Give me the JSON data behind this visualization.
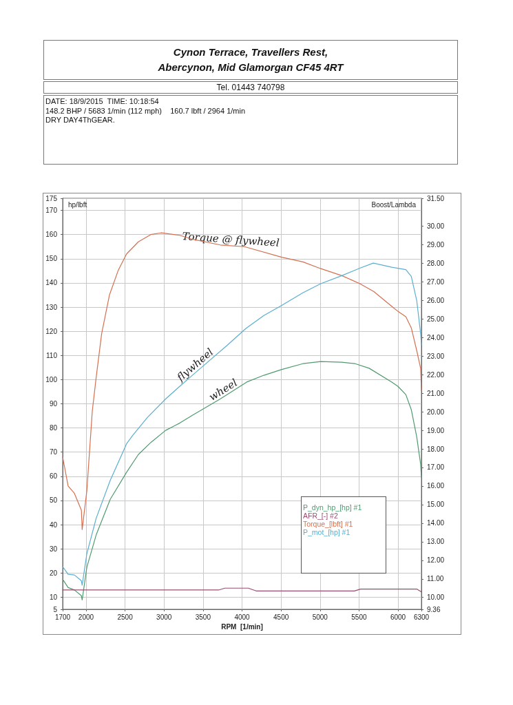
{
  "chart_data": {
    "type": "line",
    "title": "Cynon Terrace, Travellers Rest, Abercynon, Mid Glamorgan CF45 4RT",
    "subtitle": "Tel. 01443 740798",
    "xlabel": "RPM  [1/min]",
    "ylabel": "hp/lbft",
    "y2label": "Boost/Lambda",
    "annotations": [
      "DATE: 18/9/2015  TIME: 10:18:54",
      "148.2 BHP / 5683 1/min (112 mph)    160.7 lbft / 2964 1/min",
      "DRY DAY4ThGEAR.",
      {
        "text": "Torque @ flywheel",
        "x": 3850,
        "y": 155.4
      },
      {
        "text": "flywheel",
        "x": 3450,
        "y": 104.2
      },
      {
        "text": "wheel",
        "x": 3800,
        "y": 93.6
      }
    ],
    "series": [
      {
        "name": "P_dyn_hp_[hp] #1",
        "color": "#4f9a6e",
        "x": [
          1700,
          1770,
          1850,
          1940,
          1950,
          2010,
          2130,
          2310,
          2520,
          2670,
          2830,
          3020,
          3200,
          3370,
          3720,
          4060,
          4280,
          4510,
          4780,
          5010,
          5280,
          5450,
          5630,
          5920,
          6000,
          6100,
          6170,
          6240,
          6290,
          6300
        ],
        "values": [
          17.4,
          14,
          13,
          10.6,
          8.9,
          22.4,
          35.8,
          50.5,
          61.7,
          69,
          74,
          79,
          82,
          85.4,
          92,
          99,
          101.8,
          104.2,
          106.6,
          107.5,
          107.2,
          106.6,
          104.7,
          99,
          97.2,
          93.8,
          87.6,
          76.3,
          65,
          59.5
        ]
      },
      {
        "name": "AFR_[-] #2",
        "color": "#9a4a70",
        "axis": "y2",
        "x": [
          1700,
          3700,
          3780,
          4080,
          4180,
          5440,
          5520,
          6240,
          6300
        ],
        "values": [
          10.4,
          10.4,
          10.5,
          10.5,
          10.35,
          10.35,
          10.45,
          10.45,
          10.3
        ]
      },
      {
        "name": "Torque_[lbft] #1",
        "color": "#d4704f",
        "x": [
          1700,
          1770,
          1850,
          1940,
          1950,
          2010,
          2080,
          2130,
          2200,
          2300,
          2410,
          2520,
          2670,
          2830,
          2964,
          3200,
          3370,
          3720,
          4030,
          4510,
          4780,
          5010,
          5280,
          5510,
          5690,
          5920,
          6000,
          6100,
          6170,
          6240,
          6290,
          6300
        ],
        "values": [
          68,
          56,
          53,
          46,
          38,
          54,
          87,
          101,
          119,
          135,
          145,
          152,
          157,
          160,
          160.7,
          159.7,
          158,
          155.7,
          155,
          150.6,
          148.7,
          145.9,
          143,
          139.7,
          136.4,
          130.3,
          128.2,
          126,
          121.4,
          112,
          104.6,
          95.5
        ]
      },
      {
        "name": "P_mot_[hp] #1",
        "color": "#5aaed0",
        "x": [
          1700,
          1770,
          1850,
          1940,
          1950,
          2010,
          2130,
          2310,
          2520,
          2600,
          2790,
          3020,
          3200,
          3370,
          3810,
          4050,
          4280,
          4510,
          4780,
          5010,
          5280,
          5510,
          5683,
          5920,
          6100,
          6170,
          6240,
          6290,
          6300
        ],
        "values": [
          22.6,
          19.5,
          19.2,
          16.8,
          15,
          28,
          42.7,
          58.3,
          73.5,
          77,
          84.5,
          92,
          97.2,
          102,
          114.2,
          121.2,
          126.5,
          130.7,
          135.9,
          139.7,
          143,
          146.1,
          148.2,
          146.5,
          145.5,
          142.7,
          132.7,
          119,
          114.5
        ]
      }
    ],
    "xlim": [
      1700,
      6300
    ],
    "xticks": [
      1700,
      2000,
      2500,
      3000,
      3500,
      4000,
      4500,
      5000,
      5500,
      6000,
      6300
    ],
    "ylim": [
      5,
      175
    ],
    "yticks": [
      5,
      10,
      20,
      30,
      40,
      50,
      60,
      70,
      80,
      90,
      100,
      110,
      120,
      130,
      140,
      150,
      160,
      170,
      175
    ],
    "y2lim": [
      9.36,
      31.5
    ],
    "y2ticks": [
      {
        "value": 9.36,
        "label": "9.36"
      },
      {
        "value": 10,
        "label": "10.00"
      },
      {
        "value": 11,
        "label": "11.00"
      },
      {
        "value": 12,
        "label": "12.00"
      },
      {
        "value": 13,
        "label": "13.00"
      },
      {
        "value": 14,
        "label": "14.00"
      },
      {
        "value": 15,
        "label": "15.00"
      },
      {
        "value": 16,
        "label": "16.00"
      },
      {
        "value": 17,
        "label": "17.00"
      },
      {
        "value": 18,
        "label": "18.00"
      },
      {
        "value": 19,
        "label": "19.00"
      },
      {
        "value": 20,
        "label": "20.00"
      },
      {
        "value": 21,
        "label": "21.00"
      },
      {
        "value": 22,
        "label": "22.00"
      },
      {
        "value": 23,
        "label": "23.00"
      },
      {
        "value": 24,
        "label": "24.00"
      },
      {
        "value": 25,
        "label": "25.00"
      },
      {
        "value": 26,
        "label": "26.00"
      },
      {
        "value": 27,
        "label": "27.00"
      },
      {
        "value": 28,
        "label": "28.00"
      },
      {
        "value": 29,
        "label": "29.00"
      },
      {
        "value": 30,
        "label": "30.00"
      },
      {
        "value": 31.5,
        "label": "31.50"
      }
    ],
    "grid": true,
    "legend": "bottom right",
    "marker": "none",
    "line_style": "solid"
  }
}
